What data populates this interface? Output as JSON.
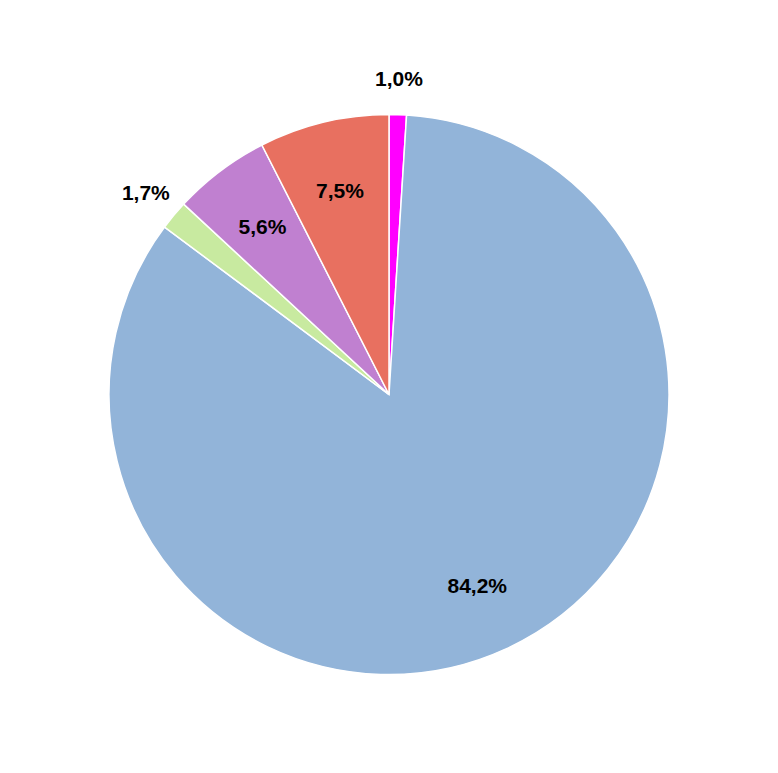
{
  "chart_data": {
    "type": "pie",
    "values": [
      1.0,
      84.2,
      1.7,
      5.6,
      7.5
    ],
    "value_labels": [
      "1,0%",
      "84,2%",
      "1,7%",
      "5,6%",
      "7,5%"
    ],
    "colors": [
      "#FF00FF",
      "#92B4D9",
      "#C8EAA0",
      "#C080D0",
      "#E87060"
    ],
    "data_labels": true
  }
}
